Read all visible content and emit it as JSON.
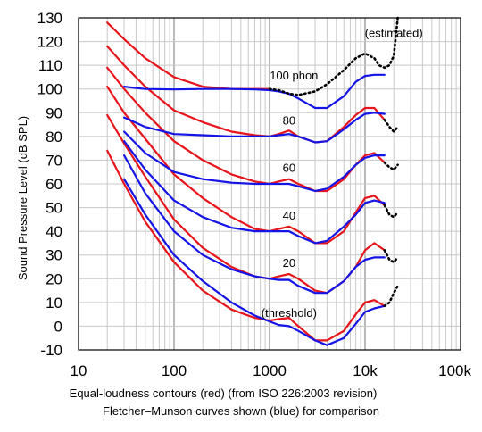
{
  "chart_data": {
    "type": "line",
    "title": "",
    "ylabel": "Sound Pressure Level (dB SPL)",
    "caption": [
      "Equal-loudness contours (red) (from ISO 226:2003 revision)",
      "Fletcher–Munson curves shown (blue) for comparison"
    ],
    "x_scale": "log",
    "xlim": [
      10,
      100000
    ],
    "ylim": [
      -10,
      130
    ],
    "x_ticks": [
      {
        "value": 10,
        "label": "10"
      },
      {
        "value": 100,
        "label": "100"
      },
      {
        "value": 1000,
        "label": "1000"
      },
      {
        "value": 10000,
        "label": "10k"
      },
      {
        "value": 100000,
        "label": "100k"
      }
    ],
    "y_ticks": [
      {
        "value": -10,
        "label": "-10"
      },
      {
        "value": 0,
        "label": "0"
      },
      {
        "value": 10,
        "label": "10"
      },
      {
        "value": 20,
        "label": "20"
      },
      {
        "value": 30,
        "label": "30"
      },
      {
        "value": 40,
        "label": "40"
      },
      {
        "value": 50,
        "label": "50"
      },
      {
        "value": 60,
        "label": "60"
      },
      {
        "value": 70,
        "label": "70"
      },
      {
        "value": 80,
        "label": "80"
      },
      {
        "value": 90,
        "label": "90"
      },
      {
        "value": 100,
        "label": "100"
      },
      {
        "value": 110,
        "label": "110"
      },
      {
        "value": 120,
        "label": "120"
      },
      {
        "value": 130,
        "label": "130"
      }
    ],
    "grid": true,
    "annotations": [
      {
        "text": "(estimated)",
        "x": 20000,
        "y": 122
      },
      {
        "text": "100 phon",
        "x": 1800,
        "y": 104
      },
      {
        "text": "80",
        "x": 1600,
        "y": 85
      },
      {
        "text": "60",
        "x": 1600,
        "y": 65
      },
      {
        "text": "40",
        "x": 1600,
        "y": 45
      },
      {
        "text": "20",
        "x": 1600,
        "y": 25
      },
      {
        "text": "(threshold)",
        "x": 1600,
        "y": 4
      }
    ],
    "series": [
      {
        "group": "iso",
        "color": "#e8141b",
        "points": [
          [
            20,
            74
          ],
          [
            30,
            60
          ],
          [
            50,
            44
          ],
          [
            100,
            27
          ],
          [
            200,
            15
          ],
          [
            400,
            7
          ],
          [
            700,
            3.5
          ],
          [
            1000,
            2.4
          ],
          [
            1250,
            3
          ],
          [
            1600,
            3.5
          ],
          [
            2000,
            0
          ],
          [
            3000,
            -6
          ],
          [
            4000,
            -6
          ],
          [
            6000,
            -2
          ],
          [
            8000,
            5
          ],
          [
            10000,
            10
          ],
          [
            12500,
            11
          ],
          [
            16000,
            8.5
          ]
        ]
      },
      {
        "group": "iso",
        "color": "#e8141b",
        "points": [
          [
            20,
            89
          ],
          [
            30,
            77
          ],
          [
            50,
            63
          ],
          [
            100,
            45
          ],
          [
            200,
            33
          ],
          [
            400,
            25
          ],
          [
            700,
            21
          ],
          [
            1000,
            20
          ],
          [
            1250,
            21
          ],
          [
            1600,
            22
          ],
          [
            2000,
            20
          ],
          [
            3000,
            15
          ],
          [
            4000,
            14
          ],
          [
            6000,
            19
          ],
          [
            8000,
            25
          ],
          [
            10000,
            32
          ],
          [
            12500,
            35
          ],
          [
            16000,
            32
          ]
        ]
      },
      {
        "group": "iso",
        "color": "#e8141b",
        "points": [
          [
            20,
            101
          ],
          [
            30,
            90
          ],
          [
            50,
            79
          ],
          [
            100,
            64
          ],
          [
            200,
            54
          ],
          [
            400,
            46
          ],
          [
            700,
            41
          ],
          [
            1000,
            40
          ],
          [
            1250,
            41
          ],
          [
            1600,
            42
          ],
          [
            2000,
            40
          ],
          [
            3000,
            35
          ],
          [
            4000,
            35
          ],
          [
            6000,
            40
          ],
          [
            8000,
            48
          ],
          [
            10000,
            54
          ],
          [
            12500,
            55
          ],
          [
            16000,
            51
          ]
        ]
      },
      {
        "group": "iso",
        "color": "#e8141b",
        "points": [
          [
            20,
            109
          ],
          [
            30,
            100
          ],
          [
            50,
            90
          ],
          [
            100,
            78
          ],
          [
            200,
            70
          ],
          [
            400,
            64
          ],
          [
            700,
            61
          ],
          [
            1000,
            60
          ],
          [
            1250,
            61
          ],
          [
            1600,
            62
          ],
          [
            2000,
            60
          ],
          [
            3000,
            57
          ],
          [
            4000,
            57
          ],
          [
            6000,
            62
          ],
          [
            8000,
            68
          ],
          [
            10000,
            72
          ],
          [
            12500,
            73
          ],
          [
            16000,
            69
          ]
        ]
      },
      {
        "group": "iso",
        "color": "#e8141b",
        "points": [
          [
            20,
            118
          ],
          [
            30,
            110
          ],
          [
            50,
            101
          ],
          [
            100,
            91
          ],
          [
            200,
            86
          ],
          [
            400,
            82
          ],
          [
            700,
            80.5
          ],
          [
            1000,
            80
          ],
          [
            1250,
            81
          ],
          [
            1600,
            82.5
          ],
          [
            2000,
            80
          ],
          [
            3000,
            77.5
          ],
          [
            4000,
            78
          ],
          [
            6000,
            84
          ],
          [
            8000,
            89
          ],
          [
            10000,
            92
          ],
          [
            12500,
            92
          ],
          [
            16000,
            87
          ]
        ]
      },
      {
        "group": "iso",
        "color": "#e8141b",
        "points": [
          [
            20,
            128
          ],
          [
            30,
            121
          ],
          [
            50,
            113
          ],
          [
            100,
            105
          ],
          [
            200,
            101
          ],
          [
            400,
            100
          ],
          [
            700,
            100
          ],
          [
            1000,
            100
          ]
        ]
      },
      {
        "group": "fm",
        "color": "#1414e6",
        "points": [
          [
            30,
            62
          ],
          [
            50,
            47
          ],
          [
            100,
            30
          ],
          [
            200,
            19
          ],
          [
            400,
            10
          ],
          [
            700,
            4.5
          ],
          [
            1000,
            2
          ],
          [
            1250,
            0.5
          ],
          [
            1600,
            0
          ],
          [
            2000,
            -2
          ],
          [
            3000,
            -6
          ],
          [
            4000,
            -8
          ],
          [
            6000,
            -5
          ],
          [
            8000,
            1
          ],
          [
            10000,
            6
          ],
          [
            12500,
            7.5
          ],
          [
            16000,
            8.5
          ]
        ]
      },
      {
        "group": "fm",
        "color": "#1414e6",
        "points": [
          [
            30,
            72
          ],
          [
            50,
            56
          ],
          [
            100,
            40
          ],
          [
            200,
            30
          ],
          [
            400,
            24
          ],
          [
            700,
            21
          ],
          [
            1000,
            20
          ],
          [
            1250,
            19.5
          ],
          [
            1600,
            19.5
          ],
          [
            2000,
            17
          ],
          [
            3000,
            14
          ],
          [
            4000,
            14
          ],
          [
            6000,
            19
          ],
          [
            8000,
            25
          ],
          [
            10000,
            28
          ],
          [
            12500,
            29
          ],
          [
            16000,
            29
          ]
        ]
      },
      {
        "group": "fm",
        "color": "#1414e6",
        "points": [
          [
            30,
            78
          ],
          [
            50,
            66
          ],
          [
            100,
            53
          ],
          [
            200,
            46
          ],
          [
            400,
            41.5
          ],
          [
            700,
            40
          ],
          [
            1000,
            40
          ],
          [
            1250,
            40
          ],
          [
            1600,
            40
          ],
          [
            2000,
            38
          ],
          [
            3000,
            35
          ],
          [
            4000,
            36
          ],
          [
            6000,
            42
          ],
          [
            8000,
            47
          ],
          [
            10000,
            52
          ],
          [
            12500,
            53
          ],
          [
            16000,
            52
          ]
        ]
      },
      {
        "group": "fm",
        "color": "#1414e6",
        "points": [
          [
            30,
            82
          ],
          [
            50,
            73
          ],
          [
            100,
            65
          ],
          [
            200,
            62
          ],
          [
            400,
            60.5
          ],
          [
            700,
            60
          ],
          [
            1000,
            60
          ],
          [
            1250,
            60
          ],
          [
            1600,
            60
          ],
          [
            2000,
            59
          ],
          [
            3000,
            57
          ],
          [
            4000,
            58
          ],
          [
            6000,
            63
          ],
          [
            8000,
            68
          ],
          [
            10000,
            71
          ],
          [
            12500,
            72
          ],
          [
            16000,
            72
          ]
        ]
      },
      {
        "group": "fm",
        "color": "#1414e6",
        "points": [
          [
            30,
            88
          ],
          [
            50,
            84
          ],
          [
            100,
            81
          ],
          [
            200,
            80.5
          ],
          [
            400,
            80
          ],
          [
            700,
            80
          ],
          [
            1000,
            80
          ],
          [
            1250,
            80.5
          ],
          [
            1600,
            81
          ],
          [
            2000,
            80
          ],
          [
            3000,
            77.5
          ],
          [
            4000,
            78
          ],
          [
            6000,
            83
          ],
          [
            8000,
            87
          ],
          [
            10000,
            89.5
          ],
          [
            12500,
            90
          ],
          [
            16000,
            89.5
          ]
        ]
      },
      {
        "group": "fm",
        "color": "#1414e6",
        "points": [
          [
            30,
            101
          ],
          [
            50,
            100
          ],
          [
            100,
            99.8
          ],
          [
            200,
            100
          ],
          [
            400,
            100
          ],
          [
            700,
            99.8
          ],
          [
            1000,
            99.5
          ],
          [
            1250,
            99
          ],
          [
            1600,
            98
          ],
          [
            2000,
            96
          ],
          [
            3000,
            92
          ],
          [
            4000,
            92
          ],
          [
            6000,
            97
          ],
          [
            8000,
            103
          ],
          [
            10000,
            105.5
          ],
          [
            12500,
            106
          ],
          [
            16000,
            106
          ]
        ]
      },
      {
        "group": "estimated",
        "color": "#000000",
        "points": [
          [
            1000,
            100
          ],
          [
            1250,
            99.5
          ],
          [
            1600,
            98
          ],
          [
            2000,
            97.5
          ],
          [
            3000,
            99
          ],
          [
            4000,
            102
          ],
          [
            6000,
            108
          ],
          [
            8000,
            113
          ],
          [
            10000,
            115
          ],
          [
            12500,
            113
          ],
          [
            14000,
            110
          ],
          [
            16000,
            109
          ],
          [
            18000,
            110
          ],
          [
            20000,
            114
          ],
          [
            22000,
            130
          ]
        ]
      },
      {
        "group": "estimated",
        "color": "#000000",
        "points": [
          [
            16000,
            87
          ],
          [
            18000,
            84
          ],
          [
            20000,
            82
          ],
          [
            22000,
            84
          ]
        ]
      },
      {
        "group": "estimated",
        "color": "#000000",
        "points": [
          [
            16000,
            69
          ],
          [
            18000,
            67
          ],
          [
            20000,
            66
          ],
          [
            22000,
            68
          ]
        ]
      },
      {
        "group": "estimated",
        "color": "#000000",
        "points": [
          [
            16000,
            51
          ],
          [
            18000,
            47
          ],
          [
            20000,
            46
          ],
          [
            22000,
            48
          ]
        ]
      },
      {
        "group": "estimated",
        "color": "#000000",
        "points": [
          [
            16000,
            32
          ],
          [
            18000,
            28
          ],
          [
            20000,
            27
          ],
          [
            22000,
            29
          ]
        ]
      },
      {
        "group": "estimated",
        "color": "#000000",
        "points": [
          [
            16000,
            8.5
          ],
          [
            18000,
            10
          ],
          [
            20000,
            14
          ],
          [
            22000,
            17
          ]
        ]
      }
    ]
  }
}
